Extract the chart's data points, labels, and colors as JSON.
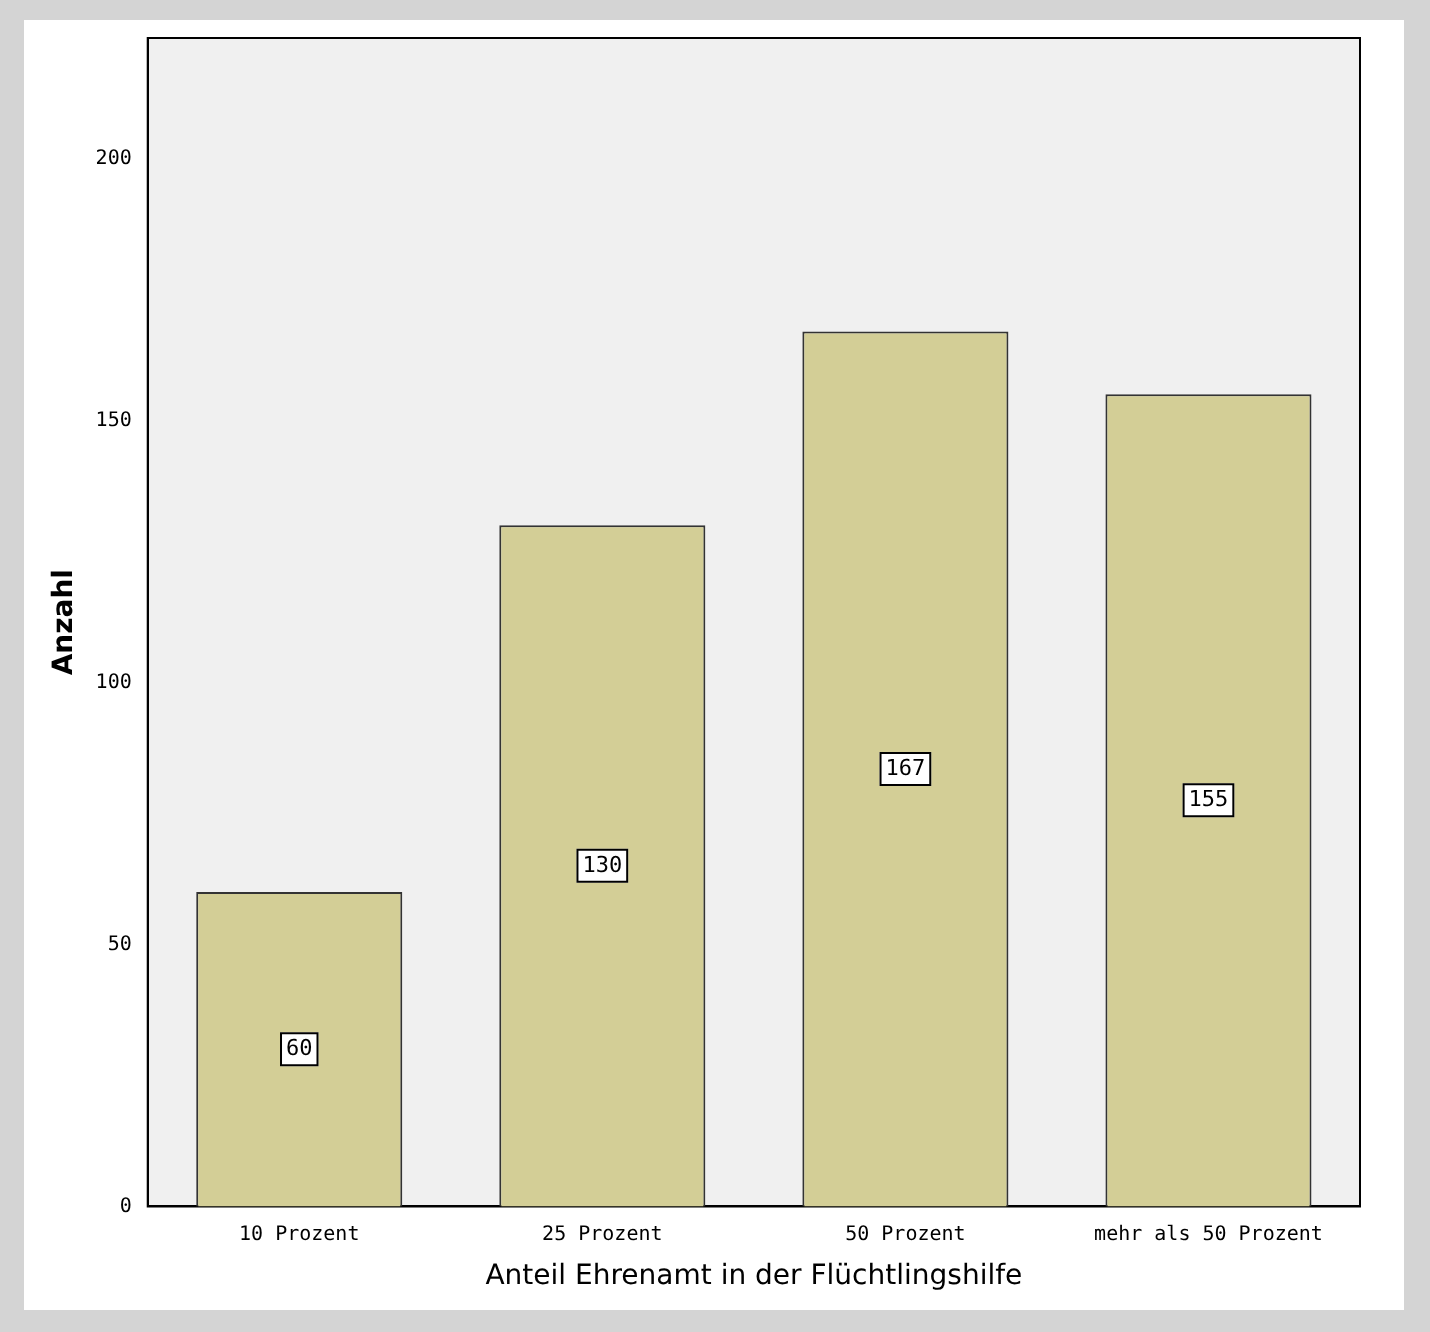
{
  "chart_data": {
    "type": "bar",
    "xlabel": "Anteil Ehrenamt in der Flüchtlingshilfe",
    "ylabel": "Anzahl",
    "categories": [
      "10 Prozent",
      "25 Prozent",
      "50 Prozent",
      "mehr als 50 Prozent"
    ],
    "values": [
      60,
      130,
      167,
      155
    ],
    "color": "#d3ce96",
    "ylim": [
      0,
      223
    ],
    "yticks": [
      0,
      50,
      100,
      150,
      200
    ],
    "grid": false,
    "legend": false,
    "data_labels": true
  }
}
